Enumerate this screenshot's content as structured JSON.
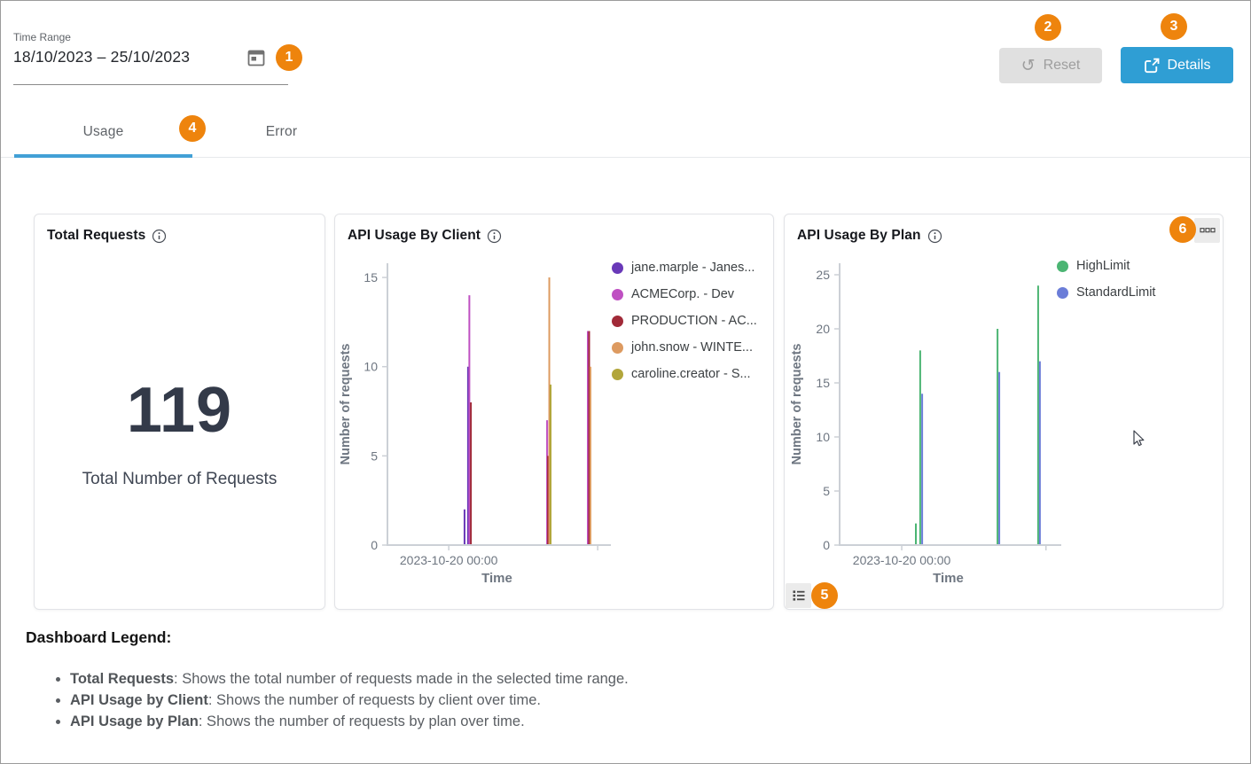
{
  "header": {
    "time_range": {
      "label": "Time Range",
      "value": "18/10/2023 – 25/10/2023"
    },
    "reset_button": "Reset",
    "details_button": "Details"
  },
  "tabs": [
    {
      "label": "Usage",
      "active": true
    },
    {
      "label": "Error",
      "active": false
    }
  ],
  "annotations": [
    "1",
    "2",
    "3",
    "4",
    "5",
    "6"
  ],
  "colors": {
    "annotation_badge": "#ee840d",
    "details_button": "#2f9ed4",
    "tab_indicator": "#42a0d6",
    "reset_button_bg": "#e0e0e0",
    "big_number": "#333a49",
    "axis_line": "#ccd0d6",
    "axis_text": "#6e7681"
  },
  "icons": {
    "time_range": "calendar-icon",
    "reset": "reset-circular-arrow-icon",
    "details": "external-link-icon",
    "card_titles": "info-icon",
    "plan_card_top_right": "more-options-icon",
    "plan_card_bottom_left": "list-icon",
    "pointer": "mouse-cursor"
  },
  "cards": {
    "total": {
      "title": "Total Requests",
      "value": "119",
      "caption": "Total Number of Requests"
    }
  },
  "chart_data": [
    {
      "type": "line",
      "title": "API Usage By Client",
      "xlabel": "Time",
      "ylabel": "Number of requests",
      "ylim": [
        0,
        15
      ],
      "yticks": [
        0,
        5,
        10,
        15
      ],
      "xtick_labels": [
        "2023-10-20 00:00"
      ],
      "grid": false,
      "legend_position": "top-right",
      "series": [
        {
          "name": "jane.marple - Janes...",
          "color": "#6939b8",
          "points": [
            {
              "x": 0.352,
              "y": 2
            },
            {
              "x": 0.368,
              "y": 10
            }
          ]
        },
        {
          "name": "ACMECorp. - Dev",
          "color": "#bf50c2",
          "points": [
            {
              "x": 0.374,
              "y": 14
            },
            {
              "x": 0.729,
              "y": 7
            },
            {
              "x": 0.915,
              "y": 12
            }
          ]
        },
        {
          "name": "PRODUCTION - AC...",
          "color": "#a12a38",
          "points": [
            {
              "x": 0.381,
              "y": 8
            },
            {
              "x": 0.733,
              "y": 5
            },
            {
              "x": 0.921,
              "y": 12
            }
          ]
        },
        {
          "name": "john.snow - WINTE...",
          "color": "#dd9a60",
          "points": [
            {
              "x": 0.739,
              "y": 15
            },
            {
              "x": 0.927,
              "y": 10
            }
          ]
        },
        {
          "name": "caroline.creator - S...",
          "color": "#b2a63b",
          "points": [
            {
              "x": 0.745,
              "y": 9
            }
          ]
        }
      ]
    },
    {
      "type": "line",
      "title": "API Usage By Plan",
      "xlabel": "Time",
      "ylabel": "Number of requests",
      "ylim": [
        0,
        25
      ],
      "yticks": [
        0,
        5,
        10,
        15,
        20,
        25
      ],
      "xtick_labels": [
        "2023-10-20 00:00"
      ],
      "grid": false,
      "legend_position": "top-right",
      "series": [
        {
          "name": "HighLimit",
          "color": "#4bb573",
          "points": [
            {
              "x": 0.351,
              "y": 2
            },
            {
              "x": 0.371,
              "y": 18
            },
            {
              "x": 0.727,
              "y": 20
            },
            {
              "x": 0.914,
              "y": 24
            }
          ]
        },
        {
          "name": "StandardLimit",
          "color": "#6b7dd8",
          "points": [
            {
              "x": 0.38,
              "y": 14
            },
            {
              "x": 0.735,
              "y": 16
            },
            {
              "x": 0.922,
              "y": 17
            }
          ]
        }
      ]
    }
  ],
  "dashboard_legend": {
    "heading": "Dashboard Legend:",
    "items": [
      {
        "label": "Total Requests",
        "text": ": Shows the total number of requests made in the selected time range."
      },
      {
        "label": "API Usage by Client",
        "text": ": Shows the number of requests by client over time."
      },
      {
        "label": "API Usage by Plan",
        "text": ": Shows the number of requests by plan over time."
      }
    ]
  }
}
